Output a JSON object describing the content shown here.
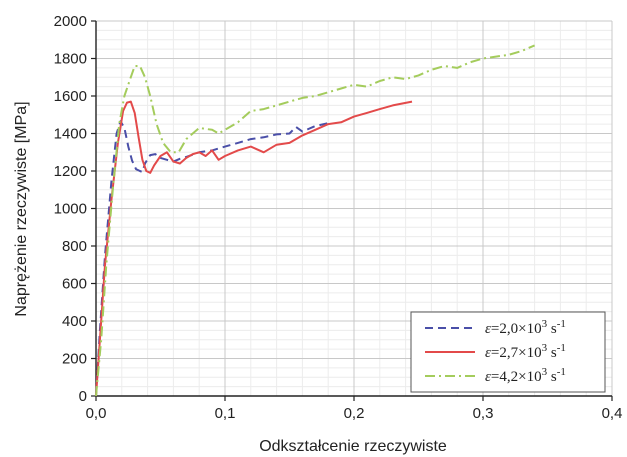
{
  "chart_data": {
    "type": "line",
    "xlabel": "Odkształcenie rzeczywiste",
    "ylabel": "Naprężenie rzeczywiste [MPa]",
    "xlim": [
      0,
      0.4
    ],
    "ylim": [
      0,
      2000
    ],
    "xticks": [
      0,
      0.1,
      0.2,
      0.3,
      0.4
    ],
    "xtick_labels": [
      "0,0",
      "0,1",
      "0,2",
      "0,3",
      "0,4"
    ],
    "yticks": [
      0,
      200,
      400,
      600,
      800,
      1000,
      1200,
      1400,
      1600,
      1800,
      2000
    ],
    "ytick_labels": [
      "0",
      "200",
      "400",
      "600",
      "800",
      "1000",
      "1200",
      "1400",
      "1600",
      "1800",
      "2000"
    ],
    "grid": true,
    "legend_position": "bottom-right",
    "series": [
      {
        "name": "ε=2,0×10³ s⁻¹",
        "legend": {
          "prefix": "ε",
          "mid": "=2,0×10",
          "sup1": "3",
          "unit": " s",
          "sup2": "-1"
        },
        "color": "#4a4fa8",
        "style": "dashed",
        "x": [
          0,
          0.003,
          0.007,
          0.012,
          0.016,
          0.019,
          0.022,
          0.025,
          0.028,
          0.031,
          0.034,
          0.036,
          0.038,
          0.042,
          0.046,
          0.05,
          0.055,
          0.06,
          0.065,
          0.07,
          0.08,
          0.09,
          0.1,
          0.11,
          0.12,
          0.13,
          0.14,
          0.15,
          0.155,
          0.16,
          0.17,
          0.18
        ],
        "y": [
          0,
          350,
          750,
          1150,
          1400,
          1465,
          1430,
          1330,
          1255,
          1210,
          1200,
          1195,
          1240,
          1285,
          1290,
          1270,
          1260,
          1250,
          1265,
          1275,
          1300,
          1310,
          1330,
          1350,
          1370,
          1380,
          1395,
          1400,
          1435,
          1410,
          1440,
          1455
        ]
      },
      {
        "name": "ε=2,7×10³ s⁻¹",
        "legend": {
          "prefix": "ε",
          "mid": "=2,7×10",
          "sup1": "3",
          "unit": " s",
          "sup2": "-1"
        },
        "color": "#e34a4a",
        "style": "solid",
        "x": [
          0,
          0.003,
          0.007,
          0.012,
          0.017,
          0.021,
          0.024,
          0.027,
          0.03,
          0.033,
          0.036,
          0.039,
          0.042,
          0.045,
          0.05,
          0.055,
          0.06,
          0.065,
          0.07,
          0.075,
          0.08,
          0.085,
          0.09,
          0.095,
          0.1,
          0.11,
          0.12,
          0.13,
          0.14,
          0.15,
          0.16,
          0.17,
          0.18,
          0.19,
          0.2,
          0.21,
          0.22,
          0.23,
          0.245
        ],
        "y": [
          0,
          300,
          700,
          1050,
          1350,
          1520,
          1565,
          1570,
          1510,
          1380,
          1260,
          1200,
          1190,
          1230,
          1280,
          1300,
          1250,
          1240,
          1270,
          1290,
          1300,
          1280,
          1310,
          1260,
          1280,
          1310,
          1330,
          1300,
          1340,
          1350,
          1390,
          1420,
          1450,
          1460,
          1490,
          1510,
          1530,
          1550,
          1570
        ]
      },
      {
        "name": "ε=4,2×10³ s⁻¹",
        "legend": {
          "prefix": "ε",
          "mid": "=4,2×10",
          "sup1": "3",
          "unit": " s",
          "sup2": "-1"
        },
        "color": "#a4cc5c",
        "style": "dashdot",
        "x": [
          0,
          0.004,
          0.008,
          0.013,
          0.018,
          0.022,
          0.026,
          0.03,
          0.034,
          0.038,
          0.042,
          0.047,
          0.052,
          0.058,
          0.064,
          0.07,
          0.08,
          0.09,
          0.095,
          0.1,
          0.11,
          0.12,
          0.13,
          0.14,
          0.15,
          0.16,
          0.17,
          0.18,
          0.19,
          0.2,
          0.21,
          0.22,
          0.23,
          0.24,
          0.25,
          0.26,
          0.27,
          0.28,
          0.29,
          0.3,
          0.31,
          0.32,
          0.33,
          0.34
        ],
        "y": [
          0,
          300,
          700,
          1100,
          1450,
          1600,
          1680,
          1760,
          1760,
          1700,
          1600,
          1450,
          1350,
          1300,
          1300,
          1370,
          1430,
          1420,
          1400,
          1420,
          1460,
          1520,
          1530,
          1550,
          1570,
          1590,
          1600,
          1620,
          1640,
          1660,
          1650,
          1680,
          1700,
          1690,
          1710,
          1740,
          1760,
          1750,
          1780,
          1800,
          1810,
          1820,
          1840,
          1870
        ]
      }
    ]
  }
}
